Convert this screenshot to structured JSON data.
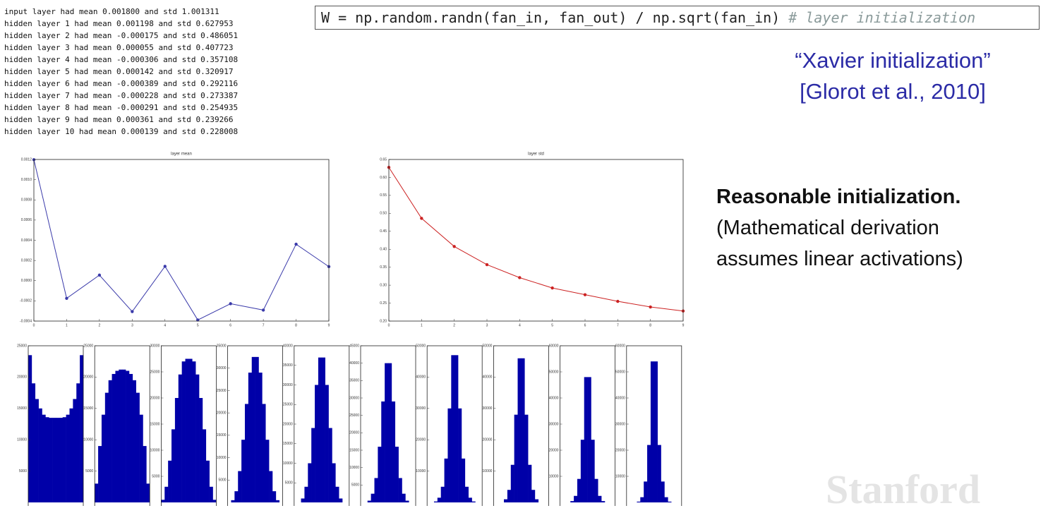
{
  "log_lines": [
    "input layer had mean 0.001800 and std 1.001311",
    "hidden layer 1 had mean 0.001198 and std 0.627953",
    "hidden layer 2 had mean -0.000175 and std 0.486051",
    "hidden layer 3 had mean 0.000055 and std 0.407723",
    "hidden layer 4 had mean -0.000306 and std 0.357108",
    "hidden layer 5 had mean 0.000142 and std 0.320917",
    "hidden layer 6 had mean -0.000389 and std 0.292116",
    "hidden layer 7 had mean -0.000228 and std 0.273387",
    "hidden layer 8 had mean -0.000291 and std 0.254935",
    "hidden layer 9 had mean 0.000361 and std 0.239266",
    "hidden layer 10 had mean 0.000139 and std 0.228008"
  ],
  "code": {
    "statement": "W = np.random.randn(fan_in, fan_out) / np.sqrt(fan_in)",
    "comment": "# layer initialization"
  },
  "citation": {
    "name": "“Xavier initialization”",
    "reference": "[Glorot et al., 2010]"
  },
  "note": {
    "heading": "Reasonable initialization.",
    "lines": [
      "(Mathematical derivation",
      "assumes linear activations)"
    ]
  },
  "watermark": "Stanford",
  "chart_data": [
    {
      "type": "line",
      "title": "layer mean",
      "x": [
        0,
        1,
        2,
        3,
        4,
        5,
        6,
        7,
        8,
        9
      ],
      "values": [
        0.001198,
        -0.000175,
        5.5e-05,
        -0.000306,
        0.000142,
        -0.000389,
        -0.000228,
        -0.000291,
        0.000361,
        0.000139
      ],
      "color": "#3a3aaa",
      "xlim": [
        0,
        9
      ],
      "xticks": [
        0,
        1,
        2,
        3,
        4,
        5,
        6,
        7,
        8,
        9
      ],
      "ylim": [
        -0.0004,
        0.0012
      ],
      "yticks": [
        -0.0004,
        -0.0002,
        {
          "value": 0,
          "label": "0.0000"
        },
        0.0002,
        0.0004,
        0.0006,
        0.0008,
        {
          "value": 0.001,
          "label": "0.0010"
        },
        0.0012
      ]
    },
    {
      "type": "line",
      "title": "layer std",
      "x": [
        0,
        1,
        2,
        3,
        4,
        5,
        6,
        7,
        8,
        9
      ],
      "values": [
        0.627953,
        0.486051,
        0.407723,
        0.357108,
        0.320917,
        0.292116,
        0.273387,
        0.254935,
        0.239266,
        0.228008
      ],
      "color": "#cc2222",
      "xlim": [
        0,
        9
      ],
      "xticks": [
        0,
        1,
        2,
        3,
        4,
        5,
        6,
        7,
        8,
        9
      ],
      "ylim": [
        0.2,
        0.65
      ],
      "yticks": [
        {
          "value": 0.2,
          "label": "0.20"
        },
        0.25,
        {
          "value": 0.3,
          "label": "0.30"
        },
        0.35,
        {
          "value": 0.4,
          "label": "0.40"
        },
        0.45,
        {
          "value": 0.5,
          "label": "0.50"
        },
        0.55,
        {
          "value": 0.6,
          "label": "0.60"
        },
        0.65
      ]
    },
    {
      "type": "histogram",
      "color": "#0000a8",
      "ylim": [
        0,
        25000
      ],
      "yticks": [
        5000,
        10000,
        15000,
        20000,
        25000
      ],
      "values": [
        23500,
        19000,
        16500,
        15000,
        14000,
        13600,
        13500,
        13500,
        13500,
        13500,
        13600,
        14000,
        15000,
        16500,
        19000,
        23500
      ]
    },
    {
      "type": "histogram",
      "color": "#0000a8",
      "ylim": [
        0,
        25000
      ],
      "yticks": [
        5000,
        10000,
        15000,
        20000,
        25000
      ],
      "values": [
        3000,
        9000,
        14000,
        17500,
        19500,
        20500,
        21000,
        21200,
        21200,
        21000,
        20500,
        19500,
        17500,
        14000,
        9000,
        3000
      ]
    },
    {
      "type": "histogram",
      "color": "#0000a8",
      "ylim": [
        0,
        30000
      ],
      "yticks": [
        5000,
        10000,
        15000,
        20000,
        25000,
        30000
      ],
      "values": [
        500,
        3000,
        8000,
        14000,
        20000,
        24500,
        27000,
        27500,
        27500,
        27000,
        24500,
        20000,
        14000,
        8000,
        3000,
        500
      ]
    },
    {
      "type": "histogram",
      "color": "#0000a8",
      "ylim": [
        0,
        35000
      ],
      "yticks": [
        5000,
        10000,
        15000,
        20000,
        25000,
        30000,
        35000
      ],
      "values": [
        0,
        500,
        2500,
        7000,
        14000,
        22000,
        29000,
        32500,
        32500,
        29000,
        22000,
        14000,
        7000,
        2500,
        500,
        0
      ]
    },
    {
      "type": "histogram",
      "color": "#0000a8",
      "ylim": [
        0,
        40000
      ],
      "yticks": [
        5000,
        10000,
        15000,
        20000,
        25000,
        30000,
        35000,
        40000
      ],
      "values": [
        0,
        0,
        1000,
        4000,
        10000,
        19000,
        30000,
        37000,
        37000,
        30000,
        19000,
        10000,
        4000,
        1000,
        0,
        0
      ]
    },
    {
      "type": "histogram",
      "color": "#0000a8",
      "ylim": [
        0,
        45000
      ],
      "yticks": [
        5000,
        10000,
        15000,
        20000,
        25000,
        30000,
        35000,
        40000,
        45000
      ],
      "values": [
        0,
        0,
        500,
        2500,
        7000,
        16000,
        29000,
        40000,
        40000,
        29000,
        16000,
        7000,
        2500,
        500,
        0,
        0
      ]
    },
    {
      "type": "histogram",
      "color": "#0000a8",
      "ylim": [
        0,
        50000
      ],
      "yticks": [
        10000,
        20000,
        30000,
        40000,
        50000
      ],
      "values": [
        0,
        0,
        300,
        1500,
        5000,
        14000,
        30000,
        47000,
        47000,
        30000,
        14000,
        5000,
        1500,
        300,
        0,
        0
      ]
    },
    {
      "type": "histogram",
      "color": "#0000a8",
      "ylim": [
        0,
        50000
      ],
      "yticks": [
        10000,
        20000,
        30000,
        40000,
        50000
      ],
      "values": [
        0,
        0,
        0,
        1000,
        4000,
        12000,
        28000,
        46000,
        46000,
        28000,
        12000,
        4000,
        1000,
        0,
        0,
        0
      ]
    },
    {
      "type": "histogram",
      "color": "#0000a8",
      "ylim": [
        0,
        60000
      ],
      "yticks": [
        10000,
        20000,
        30000,
        40000,
        50000,
        60000
      ],
      "values": [
        0,
        0,
        0,
        500,
        2500,
        9000,
        24000,
        48000,
        48000,
        24000,
        9000,
        2500,
        500,
        0,
        0,
        0
      ]
    },
    {
      "type": "histogram",
      "color": "#0000a8",
      "ylim": [
        0,
        60000
      ],
      "yticks": [
        10000,
        20000,
        30000,
        40000,
        50000,
        60000
      ],
      "values": [
        0,
        0,
        0,
        300,
        2000,
        8000,
        22000,
        54000,
        54000,
        22000,
        8000,
        2000,
        300,
        0,
        0,
        0
      ]
    }
  ]
}
